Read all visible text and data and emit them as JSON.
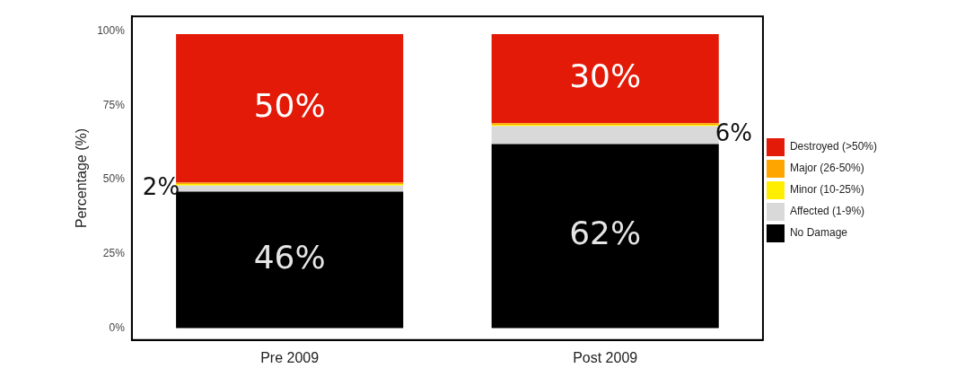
{
  "chart_data": {
    "type": "bar",
    "stacked": true,
    "ylabel": "Percentage (%)",
    "categories": [
      "Pre 2009",
      "Post 2009"
    ],
    "series": [
      {
        "name": "No Damage",
        "color": "#000000",
        "values": [
          46,
          62
        ],
        "value_labels": [
          "46%",
          "62%"
        ]
      },
      {
        "name": "Affected (1-9%)",
        "color": "#d9d9d9",
        "values": [
          2,
          6
        ],
        "value_labels": [
          "2%",
          "6%"
        ]
      },
      {
        "name": "Minor (10-25%)",
        "color": "#ffee00",
        "values": [
          0.5,
          0.5
        ]
      },
      {
        "name": "Major (26-50%)",
        "color": "#ffa500",
        "values": [
          0.5,
          0.5
        ]
      },
      {
        "name": "Destroyed (>50%)",
        "color": "#e31a08",
        "values": [
          50,
          30
        ],
        "value_labels": [
          "50%",
          "30%"
        ]
      }
    ],
    "ylim": [
      -4,
      105
    ],
    "yticks": [
      {
        "value": 0,
        "label": "0%"
      },
      {
        "value": 25,
        "label": "25%"
      },
      {
        "value": 50,
        "label": "50%"
      },
      {
        "value": 75,
        "label": "75%"
      },
      {
        "value": 100,
        "label": "100%"
      }
    ],
    "legend": "right",
    "grid": false
  }
}
